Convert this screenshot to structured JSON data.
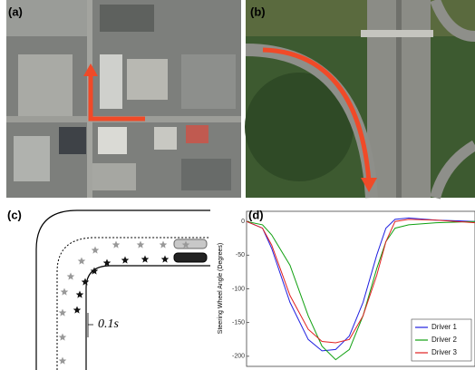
{
  "panels": {
    "a": "(a)",
    "b": "(b)",
    "c": "(c)",
    "d": "(d)"
  },
  "diagram": {
    "interval_label": "0.1s"
  },
  "chart_data": {
    "type": "line",
    "y_label": "Steering Wheel Angle (Degrees)",
    "x": [
      0,
      7,
      11,
      19,
      27,
      33,
      39,
      45,
      51,
      57,
      61,
      65,
      71,
      83,
      100
    ],
    "xlim": [
      0,
      100
    ],
    "ylim": [
      -215,
      15
    ],
    "yticks": [
      0,
      -50,
      -100,
      -150,
      -200
    ],
    "legend": "lower right",
    "series": [
      {
        "name": "Driver 1",
        "color": "#2020e0",
        "values": [
          0,
          -10,
          -40,
          -120,
          -175,
          -192,
          -190,
          -170,
          -120,
          -50,
          -10,
          3,
          5,
          2,
          0
        ]
      },
      {
        "name": "Driver 2",
        "color": "#10a010",
        "values": [
          0,
          -5,
          -20,
          -65,
          -140,
          -185,
          -205,
          -190,
          -140,
          -70,
          -30,
          -10,
          -5,
          -2,
          0
        ]
      },
      {
        "name": "Driver 3",
        "color": "#e02020",
        "values": [
          0,
          -10,
          -35,
          -110,
          -160,
          -178,
          -180,
          -175,
          -140,
          -80,
          -30,
          0,
          3,
          2,
          -2
        ]
      }
    ]
  }
}
